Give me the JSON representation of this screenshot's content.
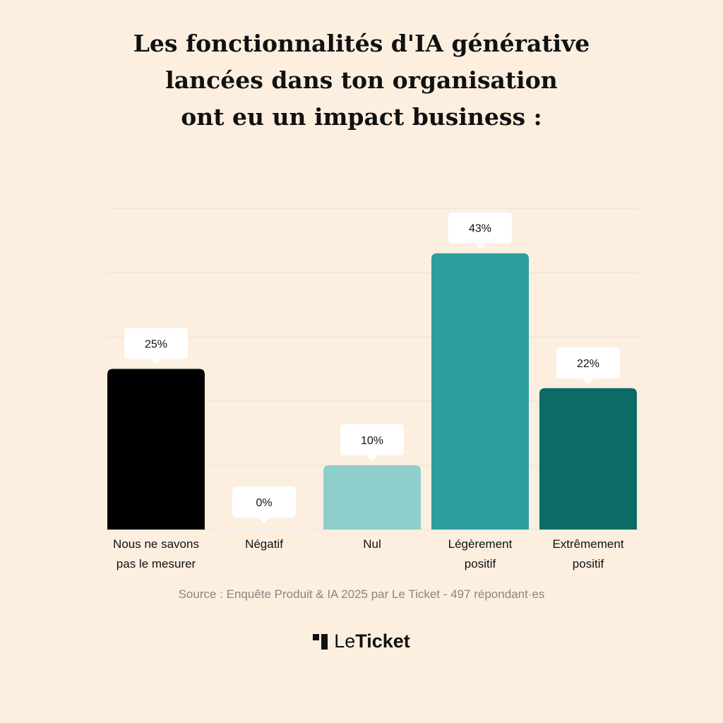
{
  "title": {
    "line1": "Les fonctionnalités d'IA générative",
    "line2": "lancées dans ton organisation",
    "line3": "ont eu un impact business :"
  },
  "chart_data": {
    "type": "bar",
    "title": "Les fonctionnalités d'IA générative lancées dans ton organisation ont eu un impact business :",
    "categories": [
      [
        "Nous ne savons",
        "pas le mesurer"
      ],
      [
        "Négatif"
      ],
      [
        "Nul"
      ],
      [
        "Légèrement",
        "positif"
      ],
      [
        "Extrêmement",
        "positif"
      ]
    ],
    "values": [
      25,
      0,
      10,
      43,
      22
    ],
    "value_labels": [
      "25%",
      "0%",
      "10%",
      "43%",
      "22%"
    ],
    "colors": [
      "#000000",
      "#f4f1ec",
      "#8ecfcc",
      "#2c9e9d",
      "#0c6b67"
    ],
    "ylim": [
      0,
      50
    ],
    "grid": true,
    "unit": "%"
  },
  "source": "Source : Enquête Produit & IA 2025 par Le Ticket - 497 répondant·es",
  "brand": {
    "part1": "Le",
    "part2": "Ticket"
  }
}
